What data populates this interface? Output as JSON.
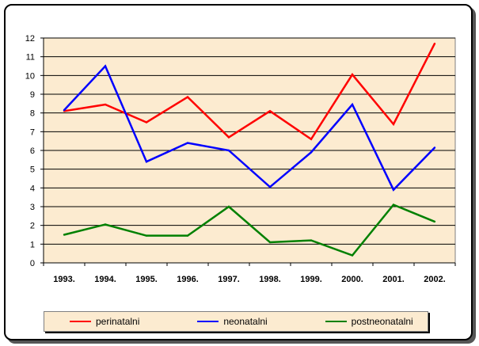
{
  "chart_data": {
    "type": "line",
    "categories": [
      "1993.",
      "1994.",
      "1995.",
      "1996.",
      "1997.",
      "1998.",
      "1999.",
      "2000.",
      "2001.",
      "2002."
    ],
    "ylim": [
      0,
      12
    ],
    "yticks": [
      "0",
      "1",
      "2",
      "3",
      "4",
      "5",
      "6",
      "7",
      "8",
      "9",
      "10",
      "11",
      "12"
    ],
    "grid": true,
    "legend_position": "bottom",
    "series": [
      {
        "name": "perinatalni",
        "color": "#ff0000",
        "values": [
          8.1,
          8.45,
          7.5,
          8.85,
          6.7,
          8.1,
          6.6,
          10.05,
          7.4,
          11.7
        ]
      },
      {
        "name": "neonatalni",
        "color": "#0000ff",
        "values": [
          8.15,
          10.5,
          5.4,
          6.4,
          6.0,
          4.05,
          5.9,
          8.45,
          3.9,
          6.15
        ]
      },
      {
        "name": "postneonatalni",
        "color": "#008000",
        "values": [
          1.5,
          2.05,
          1.45,
          1.45,
          3.0,
          1.1,
          1.2,
          0.4,
          3.1,
          2.2
        ]
      }
    ]
  }
}
